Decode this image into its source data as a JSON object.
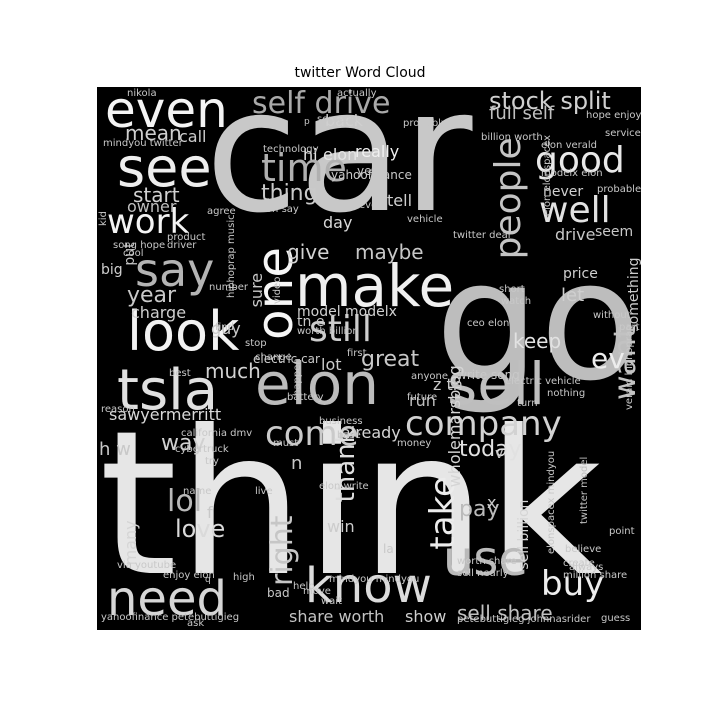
{
  "title": "twitter Word Cloud",
  "chart_data": {
    "type": "wordcloud",
    "words": [
      {
        "t": "car",
        "c": "#c8c8c8"
      },
      {
        "t": "think",
        "c": "#e6e6e6"
      },
      {
        "t": "go",
        "c": "#bdbdbd"
      },
      {
        "t": "make",
        "c": "#f0f0f0"
      },
      {
        "t": "elon",
        "c": "#bcbcbc"
      },
      {
        "t": "sell",
        "c": "#bfbfbf"
      },
      {
        "t": "tsla",
        "c": "#e0e0e0"
      },
      {
        "t": "say",
        "c": "#b4b4b4"
      },
      {
        "t": "look",
        "c": "#f2f2f2"
      },
      {
        "t": "see",
        "c": "#eeeeee"
      },
      {
        "t": "even",
        "c": "#f4f4f4"
      },
      {
        "t": "one",
        "c": "#f6f6f6"
      },
      {
        "t": "know",
        "c": "#dcdcdc"
      },
      {
        "t": "need",
        "c": "#d6d6d6"
      },
      {
        "t": "use",
        "c": "#bababa"
      },
      {
        "t": "self drive",
        "c": "#a9a9a9"
      },
      {
        "t": "stock split",
        "c": "#d0d0d0"
      },
      {
        "t": "full self",
        "c": "#c0c0c0"
      },
      {
        "t": "time",
        "c": "#b0b0b0"
      },
      {
        "t": "people",
        "c": "#c4c4c4"
      },
      {
        "t": "good",
        "c": "#e8e8e8"
      },
      {
        "t": "well",
        "c": "#e2e2e2"
      },
      {
        "t": "work",
        "c": "#f3f3f3"
      },
      {
        "t": "still",
        "c": "#cdcdcd"
      },
      {
        "t": "come",
        "c": "#cacaca"
      },
      {
        "t": "company",
        "c": "#d2d2d2"
      },
      {
        "t": "want",
        "c": "#c2c2c2"
      },
      {
        "t": "ev",
        "c": "#ededed"
      },
      {
        "t": "buy",
        "c": "#ededed"
      },
      {
        "t": "take",
        "c": "#ececec"
      },
      {
        "t": "right",
        "c": "#c6c6c6"
      },
      {
        "t": "lol",
        "c": "#b8b8b8"
      },
      {
        "t": "love",
        "c": "#dadada"
      },
      {
        "t": "thank",
        "c": "#dedede"
      },
      {
        "t": "mean",
        "c": "#cfcfcf"
      },
      {
        "t": "start",
        "c": "#d2d2d2"
      },
      {
        "t": "year",
        "c": "#c9c9c9"
      },
      {
        "t": "give",
        "c": "#d3d3d3"
      },
      {
        "t": "maybe",
        "c": "#c7c7c7"
      },
      {
        "t": "really",
        "c": "#f0f0f0"
      },
      {
        "t": "hi",
        "c": "#e4e4e4"
      },
      {
        "t": "elon",
        "c": "#e4e4e4"
      },
      {
        "t": "thing",
        "c": "#cacaca"
      },
      {
        "t": "tell",
        "c": "#cfcfcf"
      },
      {
        "t": "back",
        "c": "#cfcfcf"
      },
      {
        "t": "call",
        "c": "#cdcdcd"
      },
      {
        "t": "keep",
        "c": "#e2e2e2"
      },
      {
        "t": "great",
        "c": "#c8c8c8"
      },
      {
        "t": "much",
        "c": "#d1d1d1"
      },
      {
        "t": "today",
        "c": "#e1e1e1"
      },
      {
        "t": "pay",
        "c": "#bbbbbb"
      },
      {
        "t": "way",
        "c": "#d1d1d1"
      },
      {
        "t": "sell share",
        "c": "#c1c1c1"
      },
      {
        "t": "share worth",
        "c": "#c3c3c3"
      },
      {
        "t": "show",
        "c": "#cfcfcf"
      },
      {
        "t": "many",
        "c": "#d5d5d5"
      },
      {
        "t": "sawyermerritt",
        "c": "#d9d9d9"
      },
      {
        "t": "let",
        "c": "#cfcfcf"
      },
      {
        "t": "never",
        "c": "#d0d0d0"
      },
      {
        "t": "drive",
        "c": "#c8c8c8"
      },
      {
        "t": "seem",
        "c": "#c8c8c8"
      },
      {
        "t": "model modelx",
        "c": "#d1d1d1"
      },
      {
        "t": "lot",
        "c": "#cccccc"
      },
      {
        "t": "run",
        "c": "#bdbdbd"
      },
      {
        "t": "already",
        "c": "#d5d5d5"
      },
      {
        "t": "wholemarsblog",
        "c": "#d5d5d5"
      },
      {
        "t": "sell billion",
        "c": "#d5d5d5"
      },
      {
        "t": "win",
        "c": "#cccccc"
      },
      {
        "t": "charge",
        "c": "#cfcfcf"
      },
      {
        "t": "guy",
        "c": "#c8c8c8"
      },
      {
        "t": "sure",
        "c": "#c8c8c8"
      },
      {
        "t": "owner",
        "c": "#bfbfbf"
      },
      {
        "t": "put",
        "c": "#c4c4c4"
      },
      {
        "t": "big",
        "c": "#cfcfcf"
      },
      {
        "t": "something",
        "c": "#cccccc"
      },
      {
        "t": "price",
        "c": "#cfcfcf"
      },
      {
        "t": "day",
        "c": "#d8d8d8"
      },
      {
        "t": "twitter model",
        "c": "#bfbfbf"
      },
      {
        "t": "elonspacex mindyou",
        "c": "#c8c8c8"
      },
      {
        "t": "mindyou mindyou",
        "c": "#c8c8c8"
      },
      {
        "t": "veraid hiphoprap",
        "c": "#c8c8c8"
      },
      {
        "t": "electric car",
        "c": "#c8c8c8"
      },
      {
        "t": "write song",
        "c": "#c8c8c8"
      },
      {
        "t": "bad",
        "c": "#c8c8c8"
      },
      {
        "t": "help",
        "c": "#c8c8c8"
      },
      {
        "t": "enjoy elon",
        "c": "#c8c8c8"
      },
      {
        "t": "yahoofinance petebuttigieg",
        "c": "#c8c8c8"
      },
      {
        "t": "mindyou twitter",
        "c": "#c8c8c8"
      },
      {
        "t": "elon verald",
        "c": "#c8c8c8"
      },
      {
        "t": "modelx elon",
        "c": "#c8c8c8"
      },
      {
        "t": "hope enjoy",
        "c": "#c8c8c8"
      },
      {
        "t": "song hope",
        "c": "#c8c8c8"
      },
      {
        "t": "hiphoprap music",
        "c": "#c8c8c8"
      },
      {
        "t": "elon write",
        "c": "#c8c8c8"
      },
      {
        "t": "million share",
        "c": "#c8c8c8"
      },
      {
        "t": "elon elonspacex",
        "c": "#c8c8c8"
      },
      {
        "t": "electric vehicle",
        "c": "#c8c8c8"
      },
      {
        "t": "ceo elon",
        "c": "#c8c8c8"
      },
      {
        "t": "worth billion",
        "c": "#c8c8c8"
      },
      {
        "t": "california dmv",
        "c": "#c8c8c8"
      },
      {
        "t": "via youtube",
        "c": "#c8c8c8"
      },
      {
        "t": "elon say",
        "c": "#c8c8c8"
      },
      {
        "t": "twitter deal",
        "c": "#c8c8c8"
      },
      {
        "t": "technology",
        "c": "#c8c8c8"
      },
      {
        "t": "nikola",
        "c": "#c8c8c8"
      },
      {
        "t": "point",
        "c": "#c8c8c8"
      },
      {
        "t": "guess",
        "c": "#c8c8c8"
      },
      {
        "t": "believe",
        "c": "#c8c8c8"
      },
      {
        "t": "worth share",
        "c": "#c8c8c8"
      },
      {
        "t": "sell nearly",
        "c": "#c8c8c8"
      },
      {
        "t": "petebuttigieg johnnasrider",
        "c": "#c8c8c8"
      },
      {
        "t": "nothing",
        "c": "#c8c8c8"
      },
      {
        "t": "turn",
        "c": "#c8c8c8"
      },
      {
        "t": "future",
        "c": "#c8c8c8"
      },
      {
        "t": "anyone",
        "c": "#c8c8c8"
      },
      {
        "t": "first",
        "c": "#c8c8c8"
      },
      {
        "t": "battery",
        "c": "#c8c8c8"
      },
      {
        "t": "business",
        "c": "#c8c8c8"
      },
      {
        "t": "money",
        "c": "#c8c8c8"
      },
      {
        "t": "happen",
        "c": "#c8c8c8"
      },
      {
        "t": "cybertruck",
        "c": "#c8c8c8"
      },
      {
        "t": "must",
        "c": "#c8c8c8"
      },
      {
        "t": "try",
        "c": "#c8c8c8"
      },
      {
        "t": "best",
        "c": "#c8c8c8"
      },
      {
        "t": "reason",
        "c": "#c8c8c8"
      },
      {
        "t": "change",
        "c": "#c8c8c8"
      },
      {
        "t": "stop",
        "c": "#c8c8c8"
      },
      {
        "t": "find",
        "c": "#c8c8c8"
      },
      {
        "t": "video",
        "c": "#c8c8c8"
      },
      {
        "t": "number",
        "c": "#c8c8c8"
      },
      {
        "t": "driver",
        "c": "#c8c8c8"
      },
      {
        "t": "product",
        "c": "#c8c8c8"
      },
      {
        "t": "someone",
        "c": "#c8c8c8"
      },
      {
        "t": "probably",
        "c": "#c8c8c8"
      },
      {
        "t": "billion worth",
        "c": "#c8c8c8"
      },
      {
        "t": "probable",
        "c": "#c8c8c8"
      },
      {
        "t": "service",
        "c": "#c8c8c8"
      },
      {
        "t": "agree",
        "c": "#c8c8c8"
      },
      {
        "t": "actually",
        "c": "#c8c8c8"
      },
      {
        "t": "kid",
        "c": "#c8c8c8"
      },
      {
        "t": "cool",
        "c": "#c8c8c8"
      },
      {
        "t": "watch",
        "c": "#c8c8c8"
      },
      {
        "t": "short",
        "c": "#c8c8c8"
      },
      {
        "t": "without",
        "c": "#c8c8c8"
      },
      {
        "t": "part",
        "c": "#c8c8c8"
      },
      {
        "t": "create",
        "c": "#c8c8c8"
      },
      {
        "t": "always",
        "c": "#c8c8c8"
      },
      {
        "t": "high",
        "c": "#c8c8c8"
      },
      {
        "t": "name",
        "c": "#c8c8c8"
      },
      {
        "t": "live",
        "c": "#c8c8c8"
      },
      {
        "t": "move",
        "c": "#c8c8c8"
      },
      {
        "t": "wait",
        "c": "#c8c8c8"
      },
      {
        "t": "base",
        "c": "#c8c8c8"
      },
      {
        "t": "vehicle",
        "c": "#c8c8c8"
      },
      {
        "t": "every",
        "c": "#c8c8c8"
      },
      {
        "t": "ask",
        "c": "#c8c8c8"
      },
      {
        "t": "yet",
        "c": "#c8c8c8"
      },
      {
        "t": "yahoofinance",
        "c": "#c8c8c8"
      },
      {
        "t": "la",
        "c": "#c8c8c8"
      },
      {
        "t": "tn e",
        "c": "#c8c8c8"
      },
      {
        "t": "z tn",
        "c": "#c8c8c8"
      },
      {
        "t": "h w",
        "c": "#c8c8c8"
      },
      {
        "t": "x",
        "c": "#c8c8c8"
      },
      {
        "t": "v",
        "c": "#c8c8c8"
      },
      {
        "t": "n",
        "c": "#c8c8c8"
      },
      {
        "t": "f",
        "c": "#c8c8c8"
      },
      {
        "t": "q",
        "c": "#c8c8c8"
      },
      {
        "t": "p",
        "c": "#c8c8c8"
      }
    ]
  }
}
